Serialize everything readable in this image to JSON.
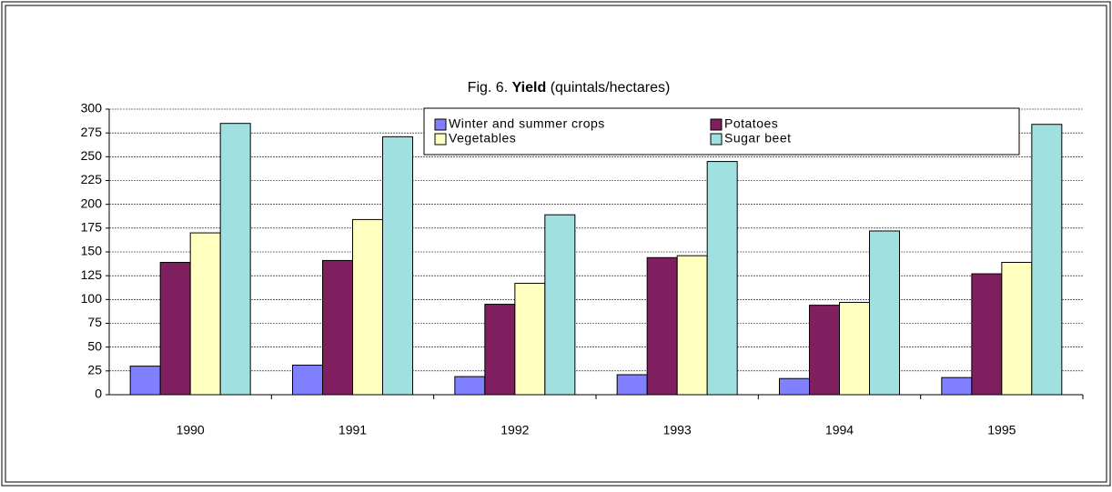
{
  "chart_data": {
    "type": "bar",
    "title": {
      "prefix": "Fig. 6.",
      "bold": "Yield",
      "suffix": "(quintals/hectares)"
    },
    "categories": [
      "1990",
      "1991",
      "1992",
      "1993",
      "1994",
      "1995"
    ],
    "series": [
      {
        "name": "Winter and summer crops",
        "color": "#8080ff",
        "values": [
          30,
          31,
          19,
          21,
          17,
          18
        ]
      },
      {
        "name": "Potatoes",
        "color": "#7f1f5f",
        "values": [
          139,
          141,
          95,
          144,
          94,
          127
        ]
      },
      {
        "name": "Vegetables",
        "color": "#ffffc0",
        "values": [
          170,
          184,
          117,
          146,
          97,
          139
        ]
      },
      {
        "name": "Sugar beet",
        "color": "#a0e0e0",
        "values": [
          285,
          271,
          189,
          245,
          172,
          284
        ]
      }
    ],
    "ylim": [
      0,
      300
    ],
    "yticks": [
      0,
      25,
      50,
      75,
      100,
      125,
      150,
      175,
      200,
      225,
      250,
      275,
      300
    ],
    "grid": true,
    "legend": "top-right"
  }
}
